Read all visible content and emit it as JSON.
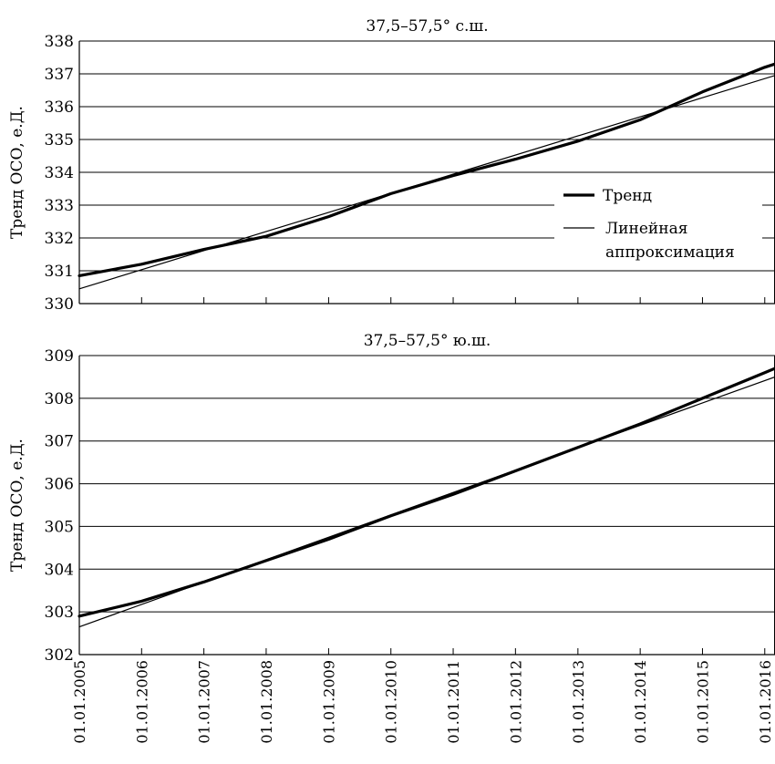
{
  "chart_data": [
    {
      "type": "line",
      "title": "37,5–57,5° с.ш.",
      "xlabel": "",
      "ylabel": "Тренд ОСО, е.Д.",
      "ylim": [
        330,
        338
      ],
      "yticks": [
        "330",
        "331",
        "332",
        "333",
        "334",
        "335",
        "336",
        "337",
        "338"
      ],
      "grid": "horizontal",
      "legend": {
        "placement": "right",
        "entries": [
          "Тренд",
          "Линейная аппроксимация"
        ]
      },
      "series": [
        {
          "name": "Тренд",
          "style": "thick",
          "x": [
            "2005-01-01",
            "2006-01-01",
            "2007-01-01",
            "2008-01-01",
            "2009-01-01",
            "2010-01-01",
            "2011-01-01",
            "2012-01-01",
            "2013-01-01",
            "2014-01-01",
            "2015-01-01",
            "2016-01-01",
            "2016-03-01"
          ],
          "y": [
            330.85,
            331.2,
            331.65,
            332.05,
            332.65,
            333.35,
            333.9,
            334.4,
            334.95,
            335.6,
            336.45,
            337.2,
            337.3
          ]
        },
        {
          "name": "Линейная аппроксимация",
          "style": "thin",
          "x": [
            "2005-01-01",
            "2016-03-01"
          ],
          "y": [
            330.45,
            336.95
          ]
        }
      ]
    },
    {
      "type": "line",
      "title": "37,5–57,5° ю.ш.",
      "xlabel": "",
      "ylabel": "Тренд ОСО, е.Д.",
      "ylim": [
        302,
        309
      ],
      "yticks": [
        "302",
        "303",
        "304",
        "305",
        "306",
        "307",
        "308",
        "309"
      ],
      "grid": "horizontal",
      "xticks": [
        "01.01.2005",
        "01.01.2006",
        "01.01.2007",
        "01.01.2008",
        "01.01.2009",
        "01.01.2010",
        "01.01.2011",
        "01.01.2012",
        "01.01.2013",
        "01.01.2014",
        "01.01.2015",
        "01.01.2016"
      ],
      "series": [
        {
          "name": "Тренд",
          "style": "thick",
          "x": [
            "2005-01-01",
            "2006-01-01",
            "2007-01-01",
            "2008-01-01",
            "2009-01-01",
            "2010-01-01",
            "2011-01-01",
            "2012-01-01",
            "2013-01-01",
            "2014-01-01",
            "2015-01-01",
            "2016-01-01",
            "2016-03-01"
          ],
          "y": [
            302.9,
            303.25,
            303.7,
            304.2,
            304.7,
            305.25,
            305.75,
            306.3,
            306.85,
            307.4,
            308.0,
            308.6,
            308.7
          ]
        },
        {
          "name": "Линейная аппроксимация",
          "style": "thin",
          "x": [
            "2005-01-01",
            "2016-03-01"
          ],
          "y": [
            302.65,
            308.5
          ]
        }
      ]
    }
  ]
}
